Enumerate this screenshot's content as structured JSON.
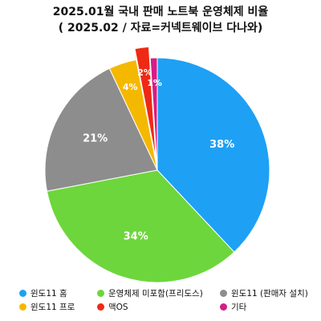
{
  "title": "2025.01월 국내 판매 노트북 운영체제 비율",
  "subtitle": "( 2025.02 / 자료=커넥트웨이브 다나와)",
  "chart_data": {
    "type": "pie",
    "title": "2025.01월 국내 판매 노트북 운영체제 비율",
    "subtitle": "( 2025.02 / 자료=커넥트웨이브 다나와)",
    "legend_position": "bottom",
    "start_angle": "12 o'clock, clockwise",
    "slices": [
      {
        "label": "윈도11 홈",
        "value": 38,
        "pct_label": "38%",
        "color": "#1ea0f5",
        "exploded": false
      },
      {
        "label": "운영체제 미포함(프리도스)",
        "value": 34,
        "pct_label": "34%",
        "color": "#6dd63c",
        "exploded": false
      },
      {
        "label": "윈도11 (판매자 설치)",
        "value": 21,
        "pct_label": "21%",
        "color": "#8d8d8d",
        "exploded": false
      },
      {
        "label": "윈도11 프로",
        "value": 4,
        "pct_label": "4%",
        "color": "#f5b800",
        "exploded": false
      },
      {
        "label": "맥OS",
        "value": 2,
        "pct_label": "2%",
        "color": "#ee2a15",
        "exploded": true
      },
      {
        "label": "기타",
        "value": 1,
        "pct_label": "1%",
        "color": "#d61d86",
        "exploded": false
      }
    ]
  },
  "legend": [
    {
      "label": "윈도11 홈",
      "color": "#1ea0f5"
    },
    {
      "label": "운영체제 미포함(프리도스)",
      "color": "#6dd63c"
    },
    {
      "label": "윈도11 (판매자 설치)",
      "color": "#8d8d8d"
    },
    {
      "label": "윈도11 프로",
      "color": "#f5b800"
    },
    {
      "label": "맥OS",
      "color": "#ee2a15"
    },
    {
      "label": "기타",
      "color": "#d61d86"
    }
  ]
}
